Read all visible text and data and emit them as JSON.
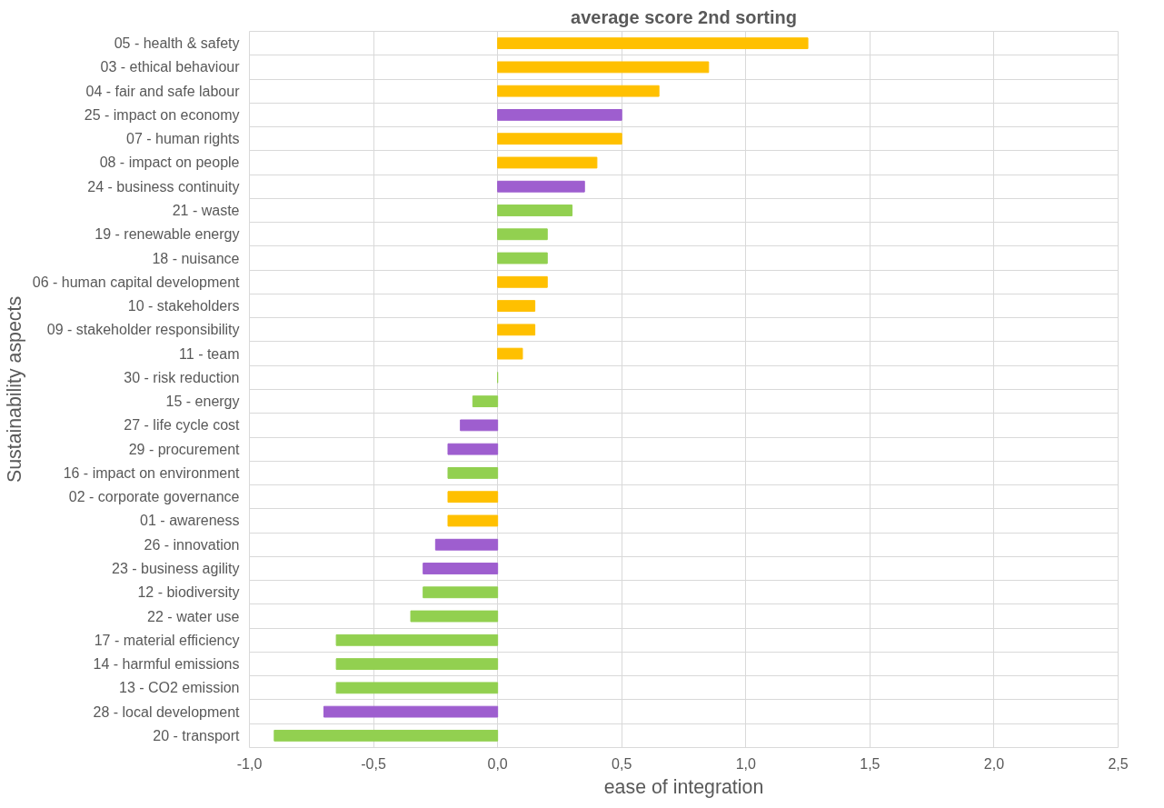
{
  "chart_data": {
    "type": "bar",
    "orientation": "horizontal",
    "title": "average score 2nd sorting",
    "xlabel": "ease of integration",
    "ylabel": "Sustainability aspects",
    "categories": [
      "05 - health & safety",
      "03 - ethical behaviour",
      "04 - fair and safe labour",
      "25 - impact on economy",
      "07 - human rights",
      "08 - impact on people",
      "24 - business continuity",
      "21 - waste",
      "19 - renewable energy",
      "18 - nuisance",
      "06 - human capital development",
      "10 - stakeholders",
      "09 - stakeholder responsibility",
      "11 - team",
      "30 - risk reduction",
      "15 - energy",
      "27 - life cycle cost",
      "29 - procurement",
      "16 - impact on environment",
      "02 - corporate governance",
      "01 - awareness",
      "26 - innovation",
      "23 - business agility",
      "12 - biodiversity",
      "22 - water use",
      "17 - material efficiency",
      "14 - harmful emissions",
      "13 - CO2 emission",
      "28 - local development",
      "20 - transport"
    ],
    "values": [
      1.25,
      0.85,
      0.65,
      0.5,
      0.5,
      0.4,
      0.35,
      0.3,
      0.2,
      0.2,
      0.2,
      0.15,
      0.15,
      0.1,
      0,
      -0.1,
      -0.15,
      -0.2,
      -0.2,
      -0.2,
      -0.2,
      -0.25,
      -0.3,
      -0.3,
      -0.35,
      -0.65,
      -0.65,
      -0.65,
      -0.7,
      -0.9
    ],
    "colors": [
      "#ffc000",
      "#ffc000",
      "#ffc000",
      "#9e5ecf",
      "#ffc000",
      "#ffc000",
      "#9e5ecf",
      "#92d050",
      "#92d050",
      "#92d050",
      "#ffc000",
      "#ffc000",
      "#ffc000",
      "#ffc000",
      "#92d050",
      "#92d050",
      "#9e5ecf",
      "#9e5ecf",
      "#92d050",
      "#ffc000",
      "#ffc000",
      "#9e5ecf",
      "#9e5ecf",
      "#92d050",
      "#92d050",
      "#92d050",
      "#92d050",
      "#92d050",
      "#9e5ecf",
      "#92d050"
    ],
    "xlim": [
      -1,
      2.5
    ],
    "xticks": [
      {
        "value": -1,
        "label": "-1,0"
      },
      {
        "value": -0.5,
        "label": "-0,5"
      },
      {
        "value": 0,
        "label": "0,0"
      },
      {
        "value": 0.5,
        "label": "0,5"
      },
      {
        "value": 1,
        "label": "1,0"
      },
      {
        "value": 1.5,
        "label": "1,5"
      },
      {
        "value": 2,
        "label": "2,0"
      },
      {
        "value": 2.5,
        "label": "2,5"
      }
    ],
    "grid": true
  }
}
